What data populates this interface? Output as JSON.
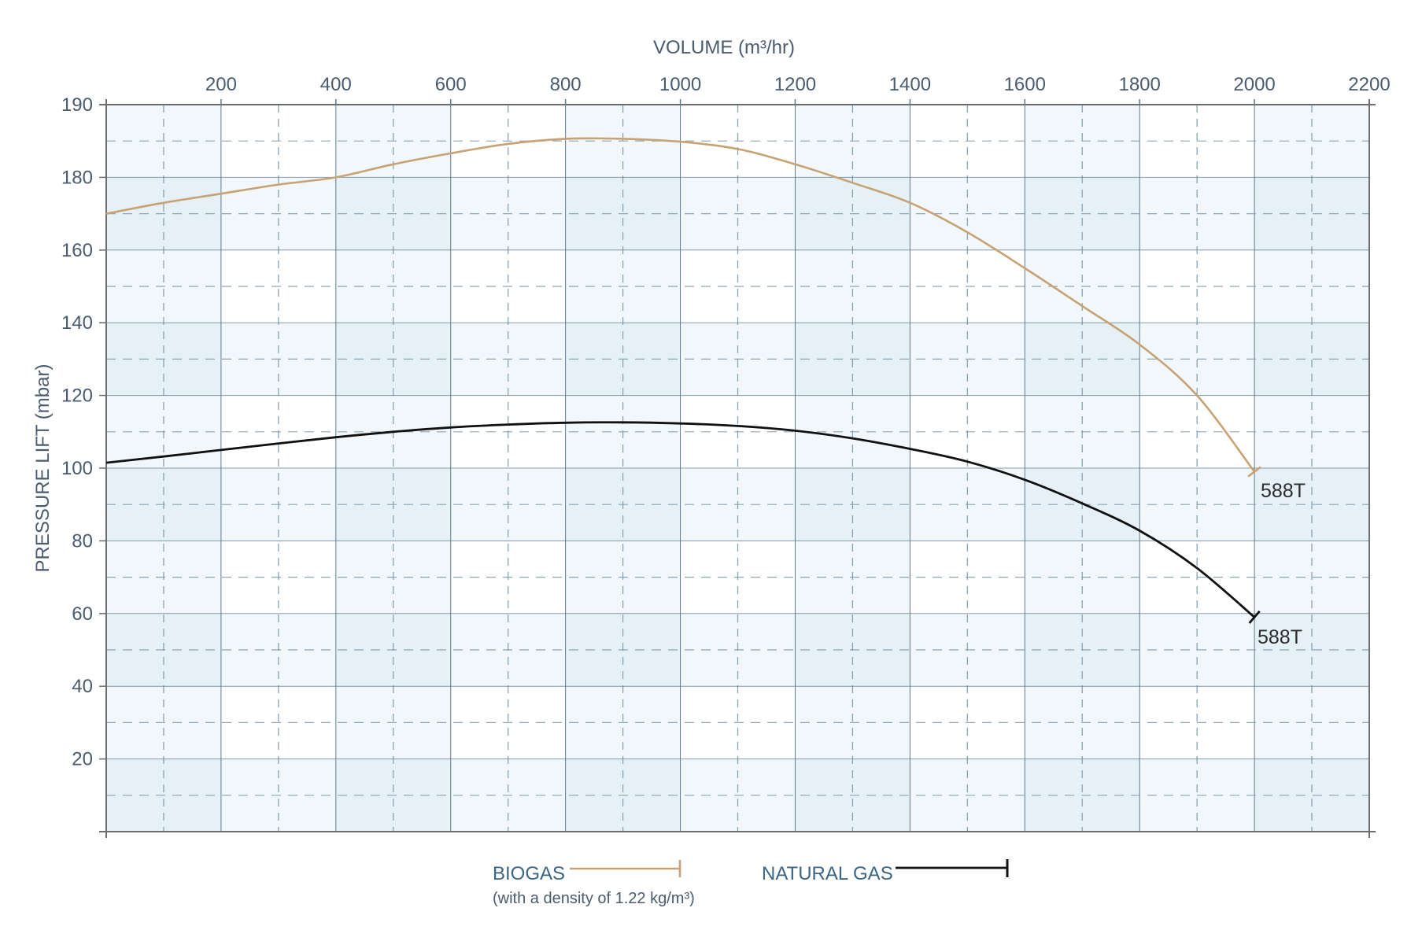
{
  "chart_data": {
    "type": "line",
    "title": "",
    "xlabel": "VOLUME (m³/hr)",
    "ylabel": "PRESSURE LIFT (mbar)",
    "xlim": [
      0,
      2200
    ],
    "x_ticks": [
      200,
      400,
      600,
      800,
      1000,
      1200,
      1400,
      1600,
      1800,
      2000,
      2200
    ],
    "y_tick_labels": [
      "20",
      "40",
      "60",
      "80",
      "100",
      "120",
      "140",
      "160",
      "180",
      "190"
    ],
    "y_tick_values": [
      20,
      40,
      60,
      80,
      100,
      120,
      140,
      160,
      180,
      190
    ],
    "grid": true,
    "x_axis_position": "top",
    "legend_position": "bottom",
    "series": [
      {
        "name": "BIOGAS",
        "subtitle": "(with a density of 1.22 kg/m³)",
        "color": "#c9a273",
        "end_label": "588T",
        "x": [
          0,
          100,
          200,
          300,
          400,
          500,
          600,
          700,
          800,
          900,
          1000,
          1100,
          1200,
          1300,
          1400,
          1500,
          1600,
          1700,
          1800,
          1900,
          2000
        ],
        "values": [
          170,
          173,
          175.5,
          178,
          180,
          181.8,
          183.3,
          184.6,
          185.3,
          185.3,
          184.9,
          183.9,
          181.8,
          178.5,
          173,
          164.9,
          155,
          144.6,
          134,
          120,
          99
        ]
      },
      {
        "name": "NATURAL GAS",
        "subtitle": "",
        "color": "#111111",
        "end_label": "588T",
        "x": [
          0,
          100,
          200,
          300,
          400,
          500,
          600,
          700,
          800,
          900,
          1000,
          1100,
          1200,
          1300,
          1400,
          1500,
          1600,
          1700,
          1800,
          1900,
          2000
        ],
        "values": [
          101.5,
          103.2,
          105,
          106.8,
          108.5,
          110,
          111.2,
          112,
          112.5,
          112.6,
          112.3,
          111.6,
          110.3,
          108.2,
          105.3,
          101.8,
          96.8,
          90.3,
          82.8,
          72.5,
          59
        ]
      }
    ]
  },
  "labels": {
    "x_title": "VOLUME (m³/hr)",
    "y_title": "PRESSURE LIFT (mbar)",
    "legend_biogas": "BIOGAS",
    "legend_biogas_sub": "(with a density of 1.22 kg/m³)",
    "legend_natural_gas": "NATURAL GAS",
    "end_label_biogas": "588T",
    "end_label_natural_gas": "588T"
  },
  "colors": {
    "shade_dark": "#e6f1f7",
    "shade_light": "#f1f7fa",
    "grid_solid": "#5d7a8c",
    "grid_dashed": "#7f9db0",
    "axis": "#6d6d6d",
    "biogas": "#c9a273",
    "natural_gas": "#111111"
  }
}
